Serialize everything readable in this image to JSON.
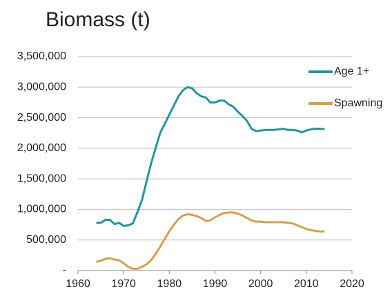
{
  "chart_data": {
    "type": "line",
    "title": "Biomass (t)",
    "x": [
      1964,
      1965,
      1966,
      1967,
      1968,
      1969,
      1970,
      1971,
      1972,
      1973,
      1974,
      1975,
      1976,
      1977,
      1978,
      1979,
      1980,
      1981,
      1982,
      1983,
      1984,
      1985,
      1986,
      1987,
      1988,
      1989,
      1990,
      1991,
      1992,
      1993,
      1994,
      1995,
      1996,
      1997,
      1998,
      1999,
      2000,
      2001,
      2002,
      2003,
      2004,
      2005,
      2006,
      2007,
      2008,
      2009,
      2010,
      2011,
      2012,
      2013,
      2014
    ],
    "series": [
      {
        "name": "Age 1+",
        "color": "#2196a0",
        "values": [
          780000,
          780000,
          830000,
          830000,
          760000,
          780000,
          730000,
          740000,
          770000,
          950000,
          1150000,
          1450000,
          1750000,
          2000000,
          2250000,
          2400000,
          2550000,
          2700000,
          2850000,
          2950000,
          3000000,
          2980000,
          2900000,
          2850000,
          2830000,
          2750000,
          2750000,
          2780000,
          2780000,
          2720000,
          2680000,
          2600000,
          2530000,
          2450000,
          2320000,
          2280000,
          2290000,
          2300000,
          2300000,
          2300000,
          2310000,
          2320000,
          2300000,
          2300000,
          2290000,
          2260000,
          2290000,
          2310000,
          2320000,
          2320000,
          2310000
        ]
      },
      {
        "name": "Spawning",
        "color": "#d4a04c",
        "values": [
          140000,
          160000,
          190000,
          200000,
          180000,
          170000,
          120000,
          60000,
          30000,
          30000,
          60000,
          100000,
          170000,
          270000,
          390000,
          520000,
          640000,
          750000,
          840000,
          900000,
          920000,
          910000,
          890000,
          860000,
          810000,
          820000,
          870000,
          910000,
          940000,
          950000,
          950000,
          930000,
          900000,
          860000,
          820000,
          800000,
          800000,
          790000,
          790000,
          790000,
          790000,
          790000,
          780000,
          770000,
          740000,
          710000,
          680000,
          660000,
          650000,
          640000,
          640000
        ]
      }
    ],
    "xlim": [
      1960,
      2020
    ],
    "xticks": [
      1960,
      1970,
      1980,
      1990,
      2000,
      2010,
      2020
    ],
    "ylim": [
      0,
      3500000
    ],
    "yticks": [
      {
        "value": 0,
        "label": "-"
      },
      {
        "value": 500000,
        "label": "500,000"
      },
      {
        "value": 1000000,
        "label": "1,000,000"
      },
      {
        "value": 1500000,
        "label": "1,500,000"
      },
      {
        "value": 2000000,
        "label": "2,000,000"
      },
      {
        "value": 2500000,
        "label": "2,500,000"
      },
      {
        "value": 3000000,
        "label": "3,000,000"
      },
      {
        "value": 3500000,
        "label": "3,500,000"
      }
    ],
    "grid": true,
    "legend": "top-right"
  }
}
